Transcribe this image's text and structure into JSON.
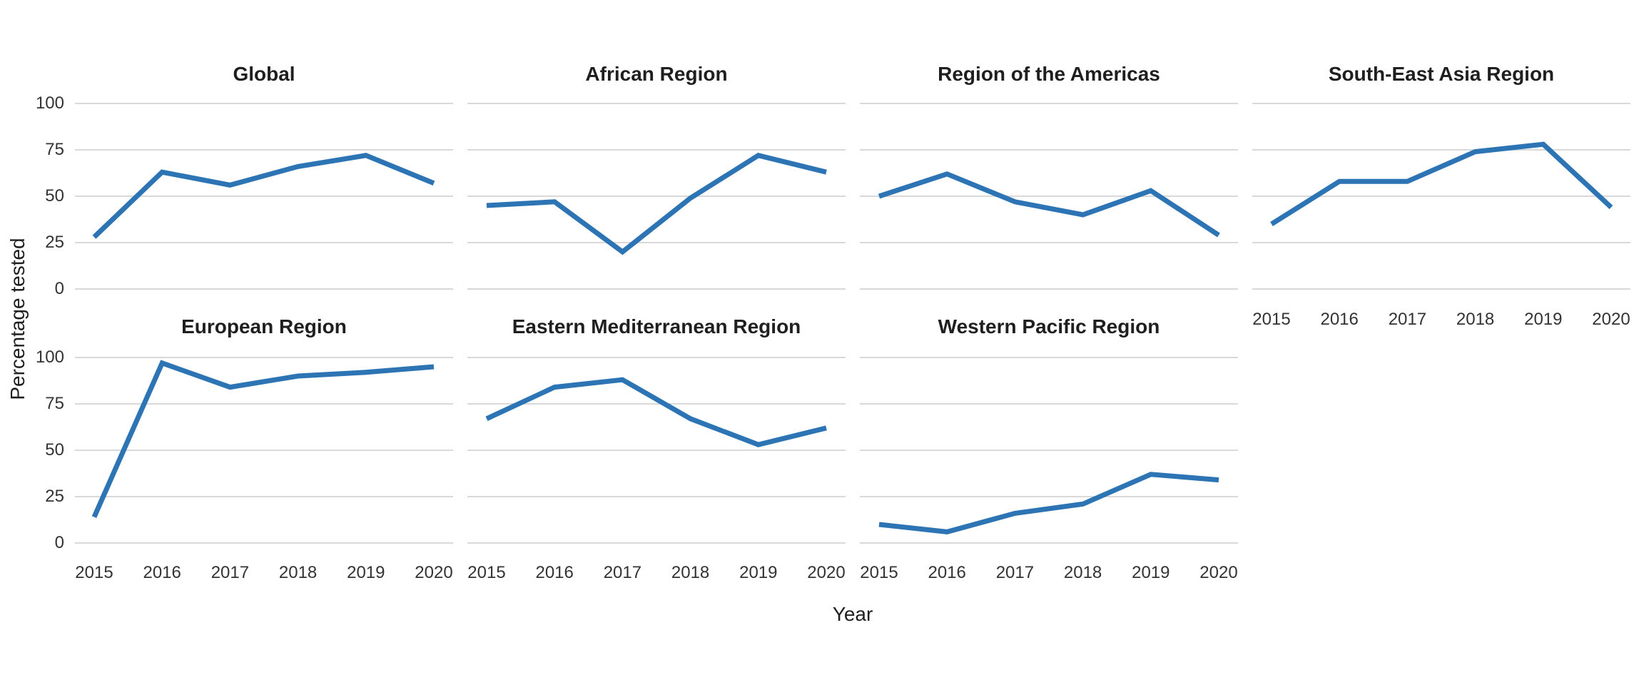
{
  "chart_data": {
    "type": "line",
    "title": "",
    "xlabel": "Year",
    "ylabel": "Percentage tested",
    "x": [
      2015,
      2016,
      2017,
      2018,
      2019,
      2020
    ],
    "ylim": [
      0,
      100
    ],
    "yticks": [
      0,
      25,
      50,
      75,
      100
    ],
    "grid": "horizontal-major-only",
    "legend": "none",
    "line_color": "#2D74B4",
    "grid_color": "#D9D9D9",
    "text_color": "#333333",
    "title_color": "#1F1F1F",
    "facets": [
      {
        "title": "Global",
        "row": 1,
        "col": 1,
        "show_y_axis": true,
        "show_x_axis": false,
        "values": [
          28,
          63,
          56,
          66,
          72,
          57
        ]
      },
      {
        "title": "African Region",
        "row": 1,
        "col": 2,
        "show_y_axis": false,
        "show_x_axis": false,
        "values": [
          45,
          47,
          20,
          49,
          72,
          63
        ]
      },
      {
        "title": "Region of the Americas",
        "row": 1,
        "col": 3,
        "show_y_axis": false,
        "show_x_axis": false,
        "values": [
          50,
          62,
          47,
          40,
          53,
          29
        ]
      },
      {
        "title": "South-East Asia Region",
        "row": 1,
        "col": 4,
        "show_y_axis": false,
        "show_x_axis": true,
        "values": [
          35,
          58,
          58,
          74,
          78,
          44
        ]
      },
      {
        "title": "European Region",
        "row": 2,
        "col": 1,
        "show_y_axis": true,
        "show_x_axis": true,
        "values": [
          14,
          97,
          84,
          90,
          92,
          95
        ]
      },
      {
        "title": "Eastern Mediterranean Region",
        "row": 2,
        "col": 2,
        "show_y_axis": false,
        "show_x_axis": true,
        "values": [
          67,
          84,
          88,
          67,
          53,
          62
        ]
      },
      {
        "title": "Western Pacific Region",
        "row": 2,
        "col": 3,
        "show_y_axis": false,
        "show_x_axis": true,
        "values": [
          10,
          6,
          16,
          21,
          37,
          34
        ]
      }
    ]
  }
}
